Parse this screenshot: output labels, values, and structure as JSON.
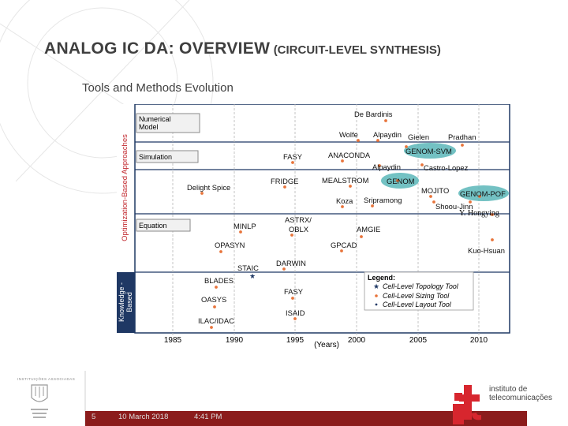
{
  "slide": {
    "title_main": "ANALOG IC DA: OVERVIEW",
    "title_paren": "(CIRCUIT-LEVEL SYNTHESIS)",
    "subtitle": "Tools and Methods Evolution"
  },
  "chart": {
    "vlabel_top": "Optimization-Based Approaches",
    "vlabel_bottom_1": "Knowledge -",
    "vlabel_bottom_2": "Based",
    "categories": {
      "numerical_1": "Numerical",
      "numerical_2": "Model",
      "simulation": "Simulation",
      "equation": "Equation"
    },
    "years": [
      "1985",
      "1990",
      "1995",
      "2000",
      "2005",
      "2010"
    ],
    "years_label": "(Years)",
    "tools": [
      {
        "key": "de_bardinis",
        "label": "De Bardinis"
      },
      {
        "key": "wolfe",
        "label": "Wolfe"
      },
      {
        "key": "alpaydin1",
        "label": "Alpaydin"
      },
      {
        "key": "gielen",
        "label": "Gielen"
      },
      {
        "key": "pradhan",
        "label": "Pradhan"
      },
      {
        "key": "genom_svm",
        "label": "GENOM-SVM"
      },
      {
        "key": "fasy1",
        "label": "FASY"
      },
      {
        "key": "anaconda",
        "label": "ANACONDA"
      },
      {
        "key": "alpaydin2",
        "label": "Alpaydin"
      },
      {
        "key": "castro",
        "label": "Castro-Lopez"
      },
      {
        "key": "delight",
        "label": "Delight Spice"
      },
      {
        "key": "fridge",
        "label": "FRIDGE"
      },
      {
        "key": "mealstrom",
        "label": "MEALSTROM"
      },
      {
        "key": "genom",
        "label": "GENOM"
      },
      {
        "key": "mojito",
        "label": "MOJITO"
      },
      {
        "key": "genom_pof",
        "label": "GENOM-POF"
      },
      {
        "key": "koza",
        "label": "Koza"
      },
      {
        "key": "sripramong",
        "label": "Sripramong"
      },
      {
        "key": "shoou",
        "label": "Shoou-Jinn"
      },
      {
        "key": "hongying",
        "label": "Y. Hongying"
      },
      {
        "key": "minlp",
        "label": "MINLP"
      },
      {
        "key": "astrx1",
        "label": "ASTRX/"
      },
      {
        "key": "astrx2",
        "label": "OBLX"
      },
      {
        "key": "amgie",
        "label": "AMGIE"
      },
      {
        "key": "opasyn",
        "label": "OPASYN"
      },
      {
        "key": "gpcad",
        "label": "GPCAD"
      },
      {
        "key": "kuo",
        "label": "Kuo-Hsuan"
      },
      {
        "key": "staic",
        "label": "STAIC"
      },
      {
        "key": "darwin",
        "label": "DARWIN"
      },
      {
        "key": "blades",
        "label": "BLADES"
      },
      {
        "key": "fasy2",
        "label": "FASY"
      },
      {
        "key": "oasys",
        "label": "OASYS"
      },
      {
        "key": "isaid",
        "label": "ISAID"
      },
      {
        "key": "ilac",
        "label": "ILAC/IDAC"
      }
    ],
    "legend": {
      "title": "Legend:",
      "topology": "Cell-Level Topology Tool",
      "sizing": "Cell-Level Sizing Tool",
      "layout": "Cell-Level Layout Tool"
    }
  },
  "footer": {
    "slide_number": "5",
    "date": "10 March 2018",
    "time": "4:41 PM",
    "institute_1": "instituto de",
    "institute_2": "telecomunicações",
    "inst_small": "INSTITUIÇÕES ASSOCIADAS"
  },
  "colors": {
    "navy": "#1f3864",
    "teal": "#5bb7b9",
    "orange": "#e8743b",
    "red": "#d7262e",
    "dark_red": "#8b1c1c"
  }
}
